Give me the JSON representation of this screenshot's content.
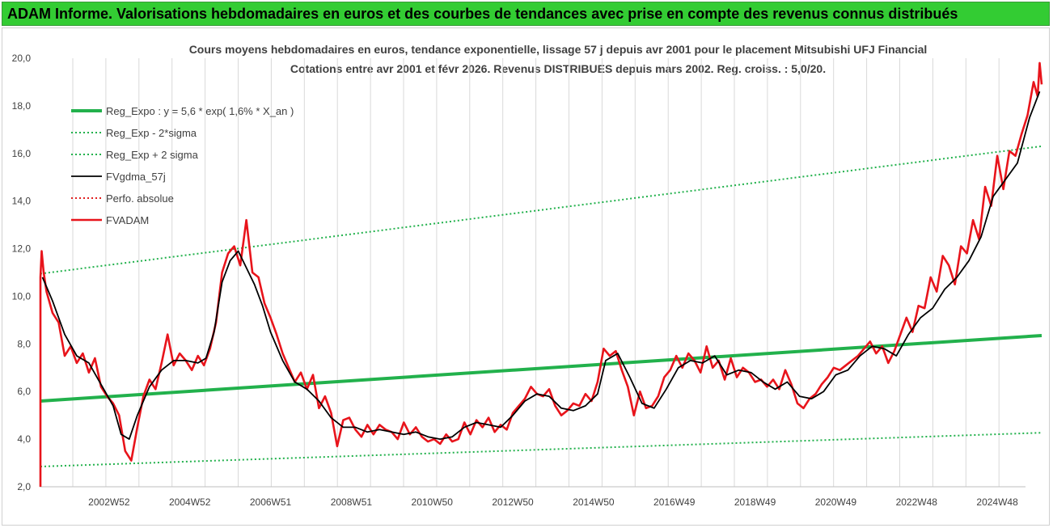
{
  "banner": {
    "title": "ADAM Informe. Valorisations hebdomadaires en euros et des courbes de tendances avec prise en compte des revenus connus distribués",
    "color": "#33cc33"
  },
  "chart_data": {
    "type": "line",
    "title": "Cours moyens hebdomadaires en euros, tendance exponentielle, lissage 57 j depuis avr 2001 pour le placement Mitsubishi UFJ Financial",
    "subtitle": "Cotations entre avr 2001 et févr 2026. Revenus DISTRIBUES depuis mars 2002. Reg. croiss. : 5,0/20.",
    "xlabel": "",
    "ylabel": "",
    "ylim": [
      2.0,
      20.0
    ],
    "y_ticks": [
      "2,0",
      "4,0",
      "6,0",
      "8,0",
      "10,0",
      "12,0",
      "14,0",
      "16,0",
      "18,0",
      "20,0"
    ],
    "x_ticks": [
      "2002W52",
      "2004W52",
      "2006W51",
      "2008W51",
      "2010W50",
      "2012W50",
      "2014W50",
      "2016W49",
      "2018W49",
      "2020W49",
      "2022W48",
      "2024W48"
    ],
    "x_tick_years": [
      2003.0,
      2005.0,
      2007.0,
      2009.0,
      2011.0,
      2013.0,
      2015.0,
      2017.0,
      2019.0,
      2021.0,
      2023.0,
      2025.0
    ],
    "xlim": [
      2001.3,
      2026.1
    ],
    "grid": "vertical",
    "legend_position": "top-left",
    "legend": [
      "Reg_Expo : y = 5,6 * exp( 1,6% *  X_an )",
      "Reg_Exp - 2*sigma",
      "Reg_Exp + 2 sigma",
      "FVgdma_57j",
      "Perfo. absolue",
      "FVADAM"
    ],
    "series": [
      {
        "name": "Reg_Expo : y = 5,6 * exp( 1,6% *  X_an )",
        "style": "solid-thick",
        "color": "#22b14c",
        "x": [
          2001.3,
          2026.1
        ],
        "values": [
          5.6,
          8.35
        ]
      },
      {
        "name": "Reg_Exp - 2*sigma",
        "style": "dotted",
        "color": "#22b14c",
        "x": [
          2001.3,
          2026.1
        ],
        "values": [
          2.85,
          4.27
        ]
      },
      {
        "name": "Reg_Exp + 2 sigma",
        "style": "dotted",
        "color": "#22b14c",
        "x": [
          2001.3,
          2026.1
        ],
        "values": [
          10.95,
          16.3
        ]
      },
      {
        "name": "FVgdma_57j",
        "style": "solid",
        "color": "#000000",
        "x": [
          2001.35,
          2001.6,
          2001.9,
          2002.2,
          2002.5,
          2002.8,
          2003.1,
          2003.3,
          2003.5,
          2003.7,
          2004.0,
          2004.3,
          2004.6,
          2004.9,
          2005.2,
          2005.4,
          2005.6,
          2005.8,
          2006.0,
          2006.2,
          2006.4,
          2006.6,
          2006.8,
          2007.0,
          2007.3,
          2007.6,
          2007.9,
          2008.2,
          2008.5,
          2008.8,
          2009.1,
          2009.4,
          2009.7,
          2010.0,
          2010.3,
          2010.6,
          2010.9,
          2011.2,
          2011.5,
          2011.8,
          2012.1,
          2012.4,
          2012.7,
          2013.0,
          2013.3,
          2013.6,
          2013.9,
          2014.2,
          2014.5,
          2014.8,
          2015.1,
          2015.3,
          2015.6,
          2015.9,
          2016.2,
          2016.5,
          2016.8,
          2017.1,
          2017.4,
          2017.7,
          2018.0,
          2018.3,
          2018.6,
          2018.9,
          2019.2,
          2019.5,
          2019.8,
          2020.1,
          2020.4,
          2020.7,
          2021.0,
          2021.3,
          2021.6,
          2021.9,
          2022.2,
          2022.5,
          2022.8,
          2023.1,
          2023.4,
          2023.7,
          2024.0,
          2024.3,
          2024.6,
          2024.9,
          2025.2,
          2025.5,
          2025.8,
          2026.05
        ],
        "values": [
          10.8,
          9.8,
          8.4,
          7.5,
          7.2,
          6.3,
          5.4,
          4.2,
          4.0,
          5.0,
          6.2,
          6.9,
          7.3,
          7.3,
          7.2,
          7.4,
          8.5,
          10.6,
          11.5,
          11.9,
          11.2,
          10.5,
          9.6,
          8.5,
          7.3,
          6.4,
          6.1,
          5.6,
          4.9,
          4.5,
          4.5,
          4.3,
          4.4,
          4.3,
          4.2,
          4.3,
          4.1,
          4.0,
          4.1,
          4.5,
          4.7,
          4.6,
          4.5,
          5.0,
          5.6,
          5.9,
          5.8,
          5.3,
          5.2,
          5.4,
          5.9,
          7.3,
          7.6,
          6.6,
          5.5,
          5.3,
          6.1,
          7.0,
          7.3,
          7.2,
          7.5,
          6.7,
          6.9,
          6.8,
          6.4,
          6.1,
          6.4,
          5.8,
          5.7,
          6.0,
          6.7,
          6.9,
          7.5,
          7.9,
          7.8,
          7.5,
          8.4,
          9.1,
          9.5,
          10.3,
          10.8,
          11.5,
          12.5,
          14.2,
          14.9,
          15.6,
          17.5,
          18.6
        ]
      },
      {
        "name": "Perfo. absolue",
        "style": "dotted",
        "color": "#e02020",
        "x": [],
        "values": []
      },
      {
        "name": "FVADAM",
        "style": "solid-thick",
        "color": "#e8141b",
        "x": [
          2001.3,
          2001.3,
          2001.33,
          2001.38,
          2001.45,
          2001.6,
          2001.75,
          2001.9,
          2002.05,
          2002.2,
          2002.35,
          2002.5,
          2002.65,
          2002.8,
          2002.95,
          2003.1,
          2003.25,
          2003.4,
          2003.55,
          2003.7,
          2003.85,
          2004.0,
          2004.15,
          2004.3,
          2004.45,
          2004.6,
          2004.75,
          2004.9,
          2005.05,
          2005.2,
          2005.35,
          2005.5,
          2005.65,
          2005.8,
          2005.95,
          2006.1,
          2006.25,
          2006.4,
          2006.55,
          2006.7,
          2006.85,
          2007.0,
          2007.15,
          2007.3,
          2007.45,
          2007.6,
          2007.75,
          2007.9,
          2008.05,
          2008.2,
          2008.35,
          2008.5,
          2008.65,
          2008.8,
          2008.95,
          2009.1,
          2009.25,
          2009.4,
          2009.55,
          2009.7,
          2009.85,
          2010.0,
          2010.15,
          2010.3,
          2010.45,
          2010.6,
          2010.75,
          2010.9,
          2011.05,
          2011.2,
          2011.35,
          2011.5,
          2011.65,
          2011.8,
          2011.95,
          2012.1,
          2012.25,
          2012.4,
          2012.55,
          2012.7,
          2012.85,
          2013.0,
          2013.15,
          2013.3,
          2013.45,
          2013.6,
          2013.75,
          2013.9,
          2014.05,
          2014.2,
          2014.35,
          2014.5,
          2014.65,
          2014.8,
          2014.95,
          2015.1,
          2015.25,
          2015.4,
          2015.55,
          2015.7,
          2015.85,
          2016.0,
          2016.15,
          2016.3,
          2016.45,
          2016.6,
          2016.75,
          2016.9,
          2017.05,
          2017.2,
          2017.35,
          2017.5,
          2017.65,
          2017.8,
          2017.95,
          2018.1,
          2018.25,
          2018.4,
          2018.55,
          2018.7,
          2018.85,
          2019.0,
          2019.15,
          2019.3,
          2019.45,
          2019.6,
          2019.75,
          2019.9,
          2020.05,
          2020.2,
          2020.35,
          2020.5,
          2020.65,
          2020.8,
          2020.95,
          2021.1,
          2021.25,
          2021.4,
          2021.55,
          2021.7,
          2021.85,
          2022.0,
          2022.15,
          2022.3,
          2022.45,
          2022.6,
          2022.75,
          2022.9,
          2023.05,
          2023.2,
          2023.35,
          2023.5,
          2023.65,
          2023.8,
          2023.95,
          2024.1,
          2024.25,
          2024.4,
          2024.55,
          2024.7,
          2024.85,
          2025.0,
          2025.15,
          2025.3,
          2025.45,
          2025.6,
          2025.75,
          2025.9,
          2026.0,
          2026.05,
          2026.1
        ],
        "values": [
          2.0,
          10.8,
          11.9,
          11.0,
          10.2,
          9.3,
          8.9,
          7.5,
          7.9,
          7.2,
          7.6,
          6.8,
          7.4,
          6.2,
          5.8,
          5.5,
          5.0,
          3.5,
          3.1,
          4.5,
          5.8,
          6.5,
          6.1,
          7.2,
          8.4,
          7.1,
          7.6,
          7.3,
          6.9,
          7.5,
          7.1,
          7.8,
          8.9,
          11.0,
          11.8,
          12.1,
          11.3,
          13.2,
          11.0,
          10.8,
          9.7,
          9.1,
          8.4,
          7.6,
          7.0,
          6.4,
          6.8,
          6.1,
          6.7,
          5.3,
          5.8,
          5.1,
          3.7,
          4.8,
          4.9,
          4.4,
          4.1,
          4.6,
          4.2,
          4.6,
          4.4,
          4.3,
          4.0,
          4.7,
          4.2,
          4.5,
          4.1,
          3.9,
          4.0,
          3.8,
          4.2,
          3.9,
          4.0,
          4.7,
          4.2,
          4.8,
          4.5,
          4.9,
          4.3,
          4.6,
          4.4,
          5.1,
          5.4,
          5.7,
          6.2,
          5.9,
          5.8,
          6.1,
          5.4,
          5.0,
          5.2,
          5.5,
          5.4,
          5.9,
          5.6,
          6.4,
          7.8,
          7.5,
          7.7,
          6.9,
          6.2,
          5.0,
          6.0,
          5.3,
          5.4,
          5.8,
          6.6,
          6.9,
          7.5,
          7.0,
          7.6,
          7.3,
          6.8,
          7.9,
          7.0,
          7.3,
          6.5,
          7.4,
          6.6,
          7.0,
          6.8,
          6.4,
          6.5,
          6.2,
          6.5,
          6.1,
          6.9,
          6.3,
          5.5,
          5.3,
          5.7,
          5.9,
          6.3,
          6.6,
          7.0,
          6.9,
          7.1,
          7.3,
          7.5,
          7.8,
          8.1,
          7.6,
          7.9,
          7.2,
          7.7,
          8.4,
          9.1,
          8.5,
          9.6,
          9.5,
          10.8,
          10.2,
          11.7,
          11.3,
          10.5,
          12.1,
          11.8,
          13.2,
          12.4,
          14.6,
          13.8,
          15.9,
          14.5,
          16.1,
          15.9,
          16.8,
          17.6,
          19.0,
          18.4,
          19.8,
          18.9
        ]
      }
    ]
  }
}
